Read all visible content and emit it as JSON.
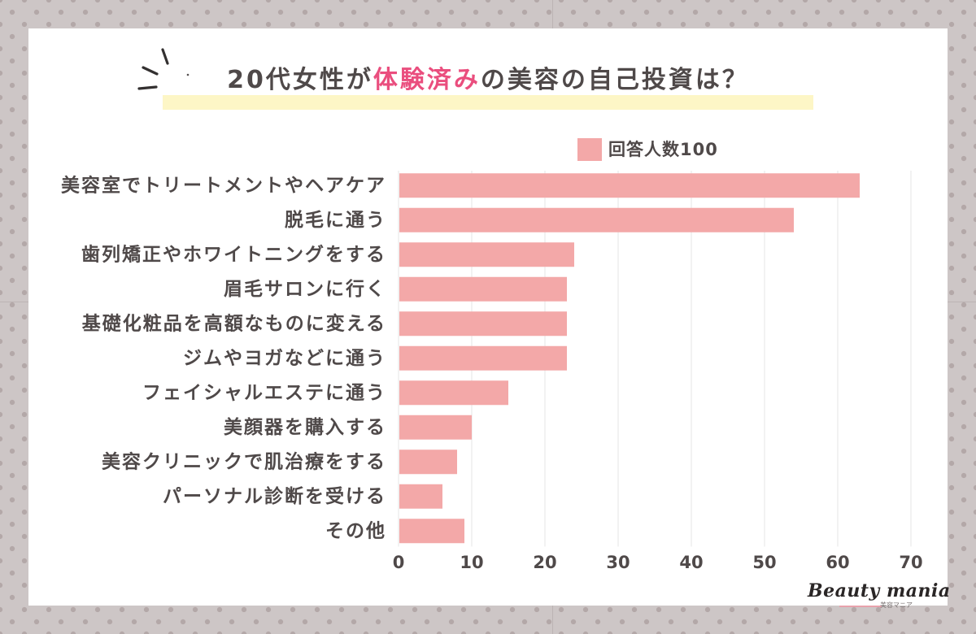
{
  "chart_data": {
    "type": "bar",
    "title": "20代女性が体験済みの美容の自己投資は？",
    "title_highlight": "体験済み",
    "categories": [
      "美容室でトリートメントやヘアケア",
      "脱毛に通う",
      "歯列矯正やホワイトニングをする",
      "眉毛サロンに行く",
      "基礎化粧品を高額なものに変える",
      "ジムやヨガなどに通う",
      "フェイシャルエステに通う",
      "美顔器を購入する",
      "美容クリニックで肌治療をする",
      "パーソナル診断を受ける",
      "その他"
    ],
    "series": [
      {
        "name": "回答人数100",
        "values": [
          63,
          54,
          24,
          23,
          23,
          23,
          15,
          10,
          8,
          6,
          9
        ]
      }
    ],
    "xlim": [
      0,
      70
    ],
    "xticks": [
      0,
      10,
      20,
      30,
      40,
      50,
      60,
      70
    ],
    "grid": true,
    "legend_position": "top-right"
  },
  "brand": {
    "logo_text": "Beauty mania",
    "logo_subtext": "美容マニア"
  },
  "icons": {
    "title_decoration": "emphasis-lines-icon"
  },
  "colors": {
    "bar": "#f3a8a8",
    "title_accent": "#ea4e7e",
    "text": "#4f4949",
    "title_highlight": "#fdf6c6",
    "grid": "#e6e6e6",
    "card": "#ffffff",
    "background": "#cdc6c6",
    "dots": "#b3a8a8"
  }
}
